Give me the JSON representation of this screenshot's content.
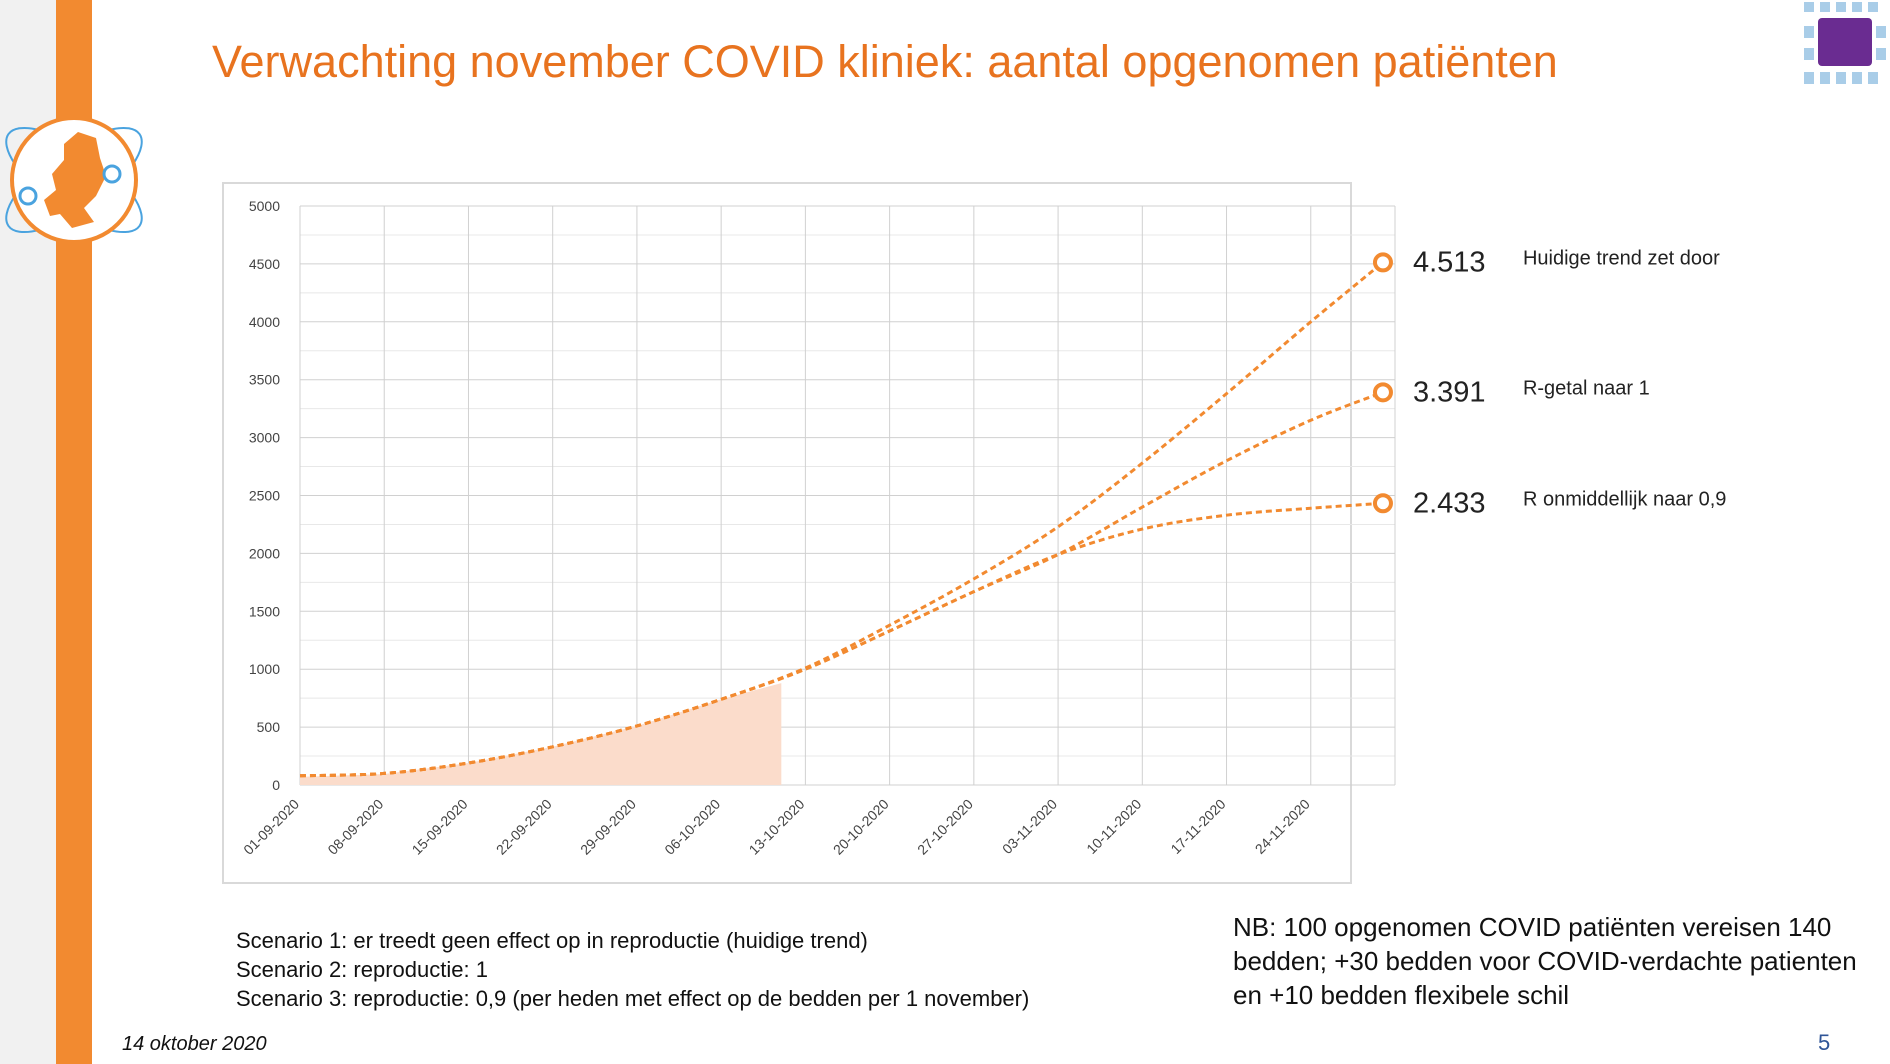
{
  "slide": {
    "title": "Verwachting november COVID kliniek: aantal opgenomen patiënten",
    "date": "14 oktober 2020",
    "page_number": "5",
    "scenarios": [
      "Scenario 1: er treedt geen effect op in reproductie (huidige trend)",
      "Scenario 2: reproductie: 1",
      "Scenario 3: reproductie: 0,9 (per heden met effect op de bedden per 1 november)"
    ],
    "note": "NB: 100 opgenomen COVID patiënten vereisen 140 bedden; +30 bedden voor COVID-verdachte patienten en +10 bedden flexibele schil",
    "colors": {
      "accent": "#f28a30",
      "title": "#e8731f",
      "area": "#fbdccb",
      "page_number": "#2f5597"
    }
  },
  "chart_data": {
    "type": "line",
    "title": "",
    "xlabel": "",
    "ylabel": "",
    "ylim": [
      0,
      5000
    ],
    "yticks": [
      "0",
      "500",
      "1000",
      "1500",
      "2000",
      "2500",
      "3000",
      "3500",
      "4000",
      "4500",
      "5000"
    ],
    "x_tick_labels": [
      "01-09-2020",
      "08-09-2020",
      "15-09-2020",
      "22-09-2020",
      "29-09-2020",
      "06-10-2020",
      "13-10-2020",
      "20-10-2020",
      "27-10-2020",
      "03-11-2020",
      "10-11-2020",
      "17-11-2020",
      "24-11-2020"
    ],
    "grid": true,
    "observed_area": {
      "x": [
        "01-09-2020",
        "08-09-2020",
        "15-09-2020",
        "22-09-2020",
        "29-09-2020",
        "06-10-2020",
        "11-10-2020"
      ],
      "values": [
        70,
        95,
        190,
        330,
        510,
        740,
        880
      ]
    },
    "series": [
      {
        "x": [
          "01-09-2020",
          "08-09-2020",
          "15-09-2020",
          "22-09-2020",
          "29-09-2020",
          "06-10-2020",
          "13-10-2020",
          "20-10-2020",
          "27-10-2020",
          "03-11-2020",
          "10-11-2020",
          "17-11-2020",
          "24-11-2020",
          "30-11-2020"
        ],
        "values": [
          80,
          100,
          190,
          330,
          510,
          740,
          1010,
          1380,
          1780,
          2230,
          2780,
          3380,
          4000,
          4513
        ],
        "end_label": "4.513",
        "annotation": "Huidige trend zet door"
      },
      {
        "x": [
          "01-09-2020",
          "08-09-2020",
          "15-09-2020",
          "22-09-2020",
          "29-09-2020",
          "06-10-2020",
          "13-10-2020",
          "20-10-2020",
          "27-10-2020",
          "03-11-2020",
          "10-11-2020",
          "17-11-2020",
          "24-11-2020",
          "30-11-2020"
        ],
        "values": [
          80,
          100,
          190,
          330,
          510,
          740,
          1000,
          1330,
          1670,
          1990,
          2400,
          2800,
          3150,
          3391
        ],
        "end_label": "3.391",
        "annotation": "R-getal naar 1"
      },
      {
        "x": [
          "01-09-2020",
          "08-09-2020",
          "15-09-2020",
          "22-09-2020",
          "29-09-2020",
          "06-10-2020",
          "13-10-2020",
          "20-10-2020",
          "27-10-2020",
          "03-11-2020",
          "10-11-2020",
          "17-11-2020",
          "24-11-2020",
          "30-11-2020"
        ],
        "values": [
          80,
          100,
          190,
          330,
          510,
          740,
          1000,
          1330,
          1670,
          1990,
          2210,
          2330,
          2390,
          2433
        ],
        "end_label": "2.433",
        "annotation": "R onmiddellijk naar 0,9"
      }
    ]
  }
}
